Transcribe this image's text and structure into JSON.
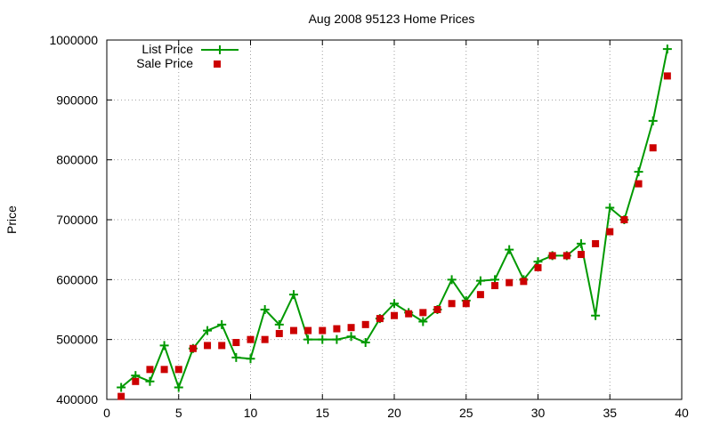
{
  "chart_data": {
    "type": "line",
    "title": "Aug 2008 95123 Home Prices",
    "xlabel": "",
    "ylabel": "Price",
    "xlim": [
      0,
      40
    ],
    "ylim": [
      400000,
      1000000
    ],
    "xticks": [
      0,
      5,
      10,
      15,
      20,
      25,
      30,
      35,
      40
    ],
    "yticks": [
      400000,
      500000,
      600000,
      700000,
      800000,
      900000,
      1000000
    ],
    "grid": true,
    "legend_position": "top-left",
    "x": [
      1,
      2,
      3,
      4,
      5,
      6,
      7,
      8,
      9,
      10,
      11,
      12,
      13,
      14,
      15,
      16,
      17,
      18,
      19,
      20,
      21,
      22,
      23,
      24,
      25,
      26,
      27,
      28,
      29,
      30,
      31,
      32,
      33,
      34,
      35,
      36,
      37,
      38,
      39
    ],
    "series": [
      {
        "name": "List Price",
        "style": "line+cross",
        "color": "#009900",
        "values": [
          420000,
          440000,
          430000,
          490000,
          420000,
          485000,
          515000,
          525000,
          470000,
          468000,
          550000,
          525000,
          575000,
          500000,
          500000,
          500000,
          505000,
          495000,
          535000,
          560000,
          545000,
          530000,
          550000,
          600000,
          565000,
          598000,
          600000,
          650000,
          600000,
          630000,
          640000,
          640000,
          660000,
          540000,
          720000,
          700000,
          780000,
          865000,
          985000
        ]
      },
      {
        "name": "Sale Price",
        "style": "square",
        "color": "#cc0000",
        "values": [
          405000,
          430000,
          450000,
          450000,
          450000,
          485000,
          490000,
          490000,
          495000,
          500000,
          500000,
          510000,
          515000,
          515000,
          515000,
          518000,
          520000,
          525000,
          535000,
          540000,
          543000,
          545000,
          550000,
          560000,
          560000,
          575000,
          590000,
          595000,
          597000,
          620000,
          640000,
          640000,
          642000,
          660000,
          680000,
          700000,
          760000,
          820000,
          940000
        ]
      }
    ]
  }
}
